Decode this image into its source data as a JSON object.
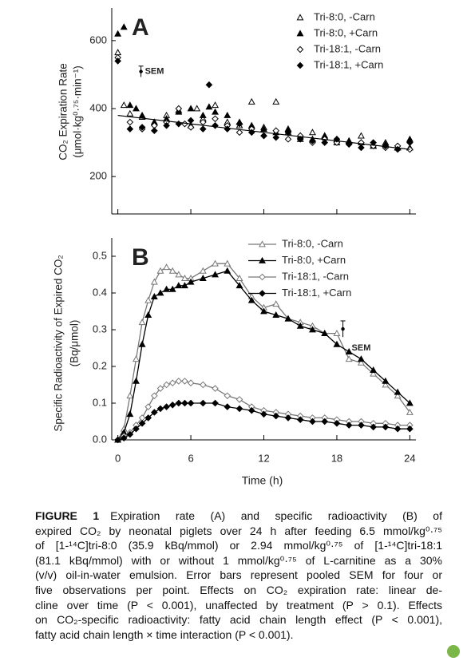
{
  "chart_data": [
    {
      "type": "scatter",
      "panel_label": "A",
      "y_label": [
        "CO₂ Expiration Rate",
        "(μmol·kg⁰·⁷⁵·min⁻¹)"
      ],
      "xlim": [
        -0.5,
        24.5
      ],
      "xticks": [
        0,
        6,
        12,
        18,
        24
      ],
      "xtick_labels": false,
      "ylim": [
        90,
        696
      ],
      "yticks": [
        200,
        400,
        600
      ],
      "legend": "upper right",
      "series": [
        {
          "name": "Tri-8:0, -Carn",
          "color": "#000000",
          "marker": "triangle-open",
          "x": [
            0,
            0.5,
            1,
            2,
            3,
            4,
            5,
            6,
            6.5,
            7,
            8,
            9,
            10,
            11,
            12,
            13,
            14,
            15,
            16,
            17,
            18,
            19,
            20,
            21,
            22,
            23,
            24
          ],
          "values": [
            565,
            410,
            385,
            375,
            360,
            380,
            395,
            350,
            400,
            370,
            410,
            360,
            350,
            420,
            345,
            420,
            330,
            310,
            330,
            320,
            300,
            305,
            320,
            290,
            300,
            285,
            285
          ]
        },
        {
          "name": "Tri-8:0, +Carn",
          "color": "#000000",
          "marker": "triangle",
          "x": [
            0,
            0.5,
            1,
            1.5,
            2,
            3,
            4,
            5,
            6,
            7,
            7.5,
            8,
            9,
            10,
            11,
            12,
            13,
            14,
            15,
            16,
            17,
            18,
            19,
            20,
            21,
            22,
            23,
            24
          ],
          "values": [
            620,
            640,
            410,
            400,
            380,
            360,
            370,
            390,
            400,
            380,
            405,
            390,
            380,
            360,
            350,
            340,
            330,
            340,
            320,
            310,
            320,
            310,
            305,
            300,
            290,
            295,
            285,
            310
          ]
        },
        {
          "name": "Tri-18:1, -Carn",
          "color": "#000000",
          "marker": "diamond-open",
          "x": [
            0,
            1,
            2,
            3,
            4,
            5,
            5.5,
            6,
            7,
            8,
            9,
            10,
            11,
            12,
            13,
            14,
            15,
            16,
            17,
            18,
            19,
            20,
            21,
            22,
            23,
            24
          ],
          "values": [
            550,
            360,
            340,
            350,
            360,
            400,
            355,
            345,
            360,
            370,
            350,
            330,
            340,
            320,
            335,
            310,
            320,
            300,
            310,
            300,
            295,
            300,
            290,
            285,
            290,
            280
          ]
        },
        {
          "name": "Tri-18:1, +Carn",
          "color": "#000000",
          "marker": "diamond",
          "x": [
            0,
            1,
            2,
            3,
            4,
            5,
            6,
            7,
            7.5,
            8,
            9,
            10,
            11,
            12,
            13,
            14,
            15,
            16,
            17,
            18,
            19,
            20,
            21,
            22,
            23,
            24
          ],
          "values": [
            540,
            340,
            345,
            335,
            350,
            355,
            365,
            340,
            470,
            350,
            340,
            355,
            330,
            320,
            315,
            330,
            310,
            305,
            300,
            310,
            295,
            285,
            300,
            290,
            280,
            300
          ]
        }
      ],
      "trend": {
        "x": [
          0,
          24
        ],
        "values": [
          380,
          280
        ]
      },
      "sem_bar": {
        "x": 1.9,
        "value": 509,
        "error": 16,
        "label": "SEM"
      }
    },
    {
      "type": "line",
      "panel_label": "B",
      "y_label": [
        "Specific Radioactivity of Expired CO₂",
        "(Bq/μmol)"
      ],
      "x_label": "Time (h)",
      "xlim": [
        -0.5,
        24.5
      ],
      "xticks": [
        0,
        6,
        12,
        18,
        24
      ],
      "xtick_labels": true,
      "ylim": [
        0,
        0.55
      ],
      "yticks": [
        {
          "value": 0,
          "label": "0.0"
        },
        0.1,
        0.2,
        0.3,
        0.4,
        0.5
      ],
      "legend": "upper right",
      "x": [
        0,
        0.5,
        1,
        1.5,
        2,
        2.5,
        3,
        3.5,
        4,
        4.5,
        5,
        5.5,
        6,
        7,
        8,
        9,
        10,
        11,
        12,
        13,
        14,
        15,
        16,
        17,
        18,
        19,
        20,
        21,
        22,
        23,
        24
      ],
      "series": [
        {
          "name": "Tri-8:0, -Carn",
          "color": "#777777",
          "marker": "triangle-open",
          "values": [
            0,
            0.03,
            0.12,
            0.22,
            0.32,
            0.38,
            0.43,
            0.46,
            0.47,
            0.46,
            0.45,
            0.44,
            0.44,
            0.46,
            0.48,
            0.48,
            0.44,
            0.39,
            0.36,
            0.37,
            0.33,
            0.32,
            0.31,
            0.29,
            0.29,
            0.22,
            0.21,
            0.18,
            0.15,
            0.12,
            0.075
          ]
        },
        {
          "name": "Tri-8:0, +Carn",
          "color": "#000000",
          "marker": "triangle",
          "values": [
            0,
            0.02,
            0.07,
            0.16,
            0.26,
            0.34,
            0.39,
            0.4,
            0.41,
            0.41,
            0.42,
            0.42,
            0.43,
            0.44,
            0.45,
            0.46,
            0.42,
            0.38,
            0.35,
            0.34,
            0.33,
            0.31,
            0.3,
            0.29,
            0.26,
            0.24,
            0.22,
            0.19,
            0.16,
            0.13,
            0.1
          ]
        },
        {
          "name": "Tri-18:1, -Carn",
          "color": "#777777",
          "marker": "diamond-open",
          "values": [
            0,
            0.01,
            0.02,
            0.04,
            0.06,
            0.09,
            0.12,
            0.14,
            0.15,
            0.155,
            0.16,
            0.16,
            0.155,
            0.15,
            0.14,
            0.12,
            0.11,
            0.09,
            0.08,
            0.075,
            0.07,
            0.065,
            0.06,
            0.06,
            0.055,
            0.05,
            0.05,
            0.045,
            0.045,
            0.04,
            0.04
          ]
        },
        {
          "name": "Tri-18:1, +Carn",
          "color": "#000000",
          "marker": "diamond",
          "values": [
            0,
            0.005,
            0.015,
            0.03,
            0.045,
            0.06,
            0.075,
            0.085,
            0.09,
            0.095,
            0.1,
            0.1,
            0.1,
            0.1,
            0.1,
            0.09,
            0.085,
            0.08,
            0.07,
            0.065,
            0.06,
            0.055,
            0.05,
            0.05,
            0.045,
            0.04,
            0.04,
            0.035,
            0.035,
            0.03,
            0.03
          ]
        }
      ],
      "sem_bar": {
        "x": 18.5,
        "value": 0.302,
        "error": 0.022,
        "label": "SEM"
      }
    }
  ],
  "caption": {
    "label": "FIGURE 1",
    "lines": [
      "Expiration rate (A) and specific radioactivity (B) of",
      "expired CO₂ by neonatal piglets over 24 h after feeding 6.5 mmol/kg⁰·⁷⁵",
      "of [1-¹⁴C]tri-8:0 (35.9 kBq/mmol) or 2.94 mmol/kg⁰·⁷⁵ of [1-¹⁴C]tri-18:1",
      "(81.1 kBq/mmol) with or without 1 mmol/kg⁰·⁷⁵ of L-carnitine as a 30%",
      "(v/v) oil-in-water emulsion. Error bars represent pooled SEM for four or",
      "five observations per point. Effects on CO₂ expiration rate: linear de-",
      "cline over time (P < 0.001), unaffected by treatment (P > 0.1). Effects",
      "on CO₂-specific radioactivity: fatty acid chain length effect (P < 0.001),",
      "fatty acid chain length × time interaction (P < 0.001)."
    ]
  }
}
